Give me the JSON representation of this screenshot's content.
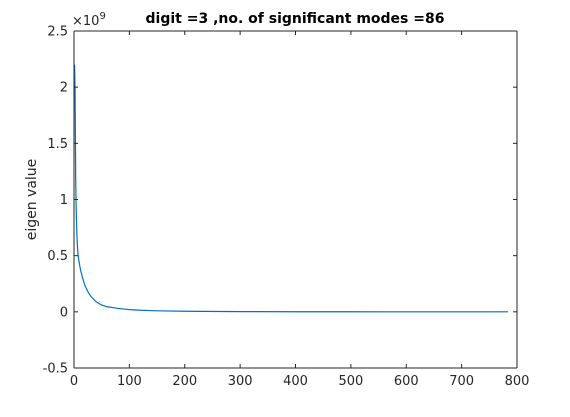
{
  "chart_data": {
    "type": "line",
    "title": "digit =3 ,no. of significant modes =86",
    "xlabel": "",
    "ylabel": "eigen value",
    "xlim": [
      0,
      800
    ],
    "ylim": [
      -0.5,
      2.5
    ],
    "y_scale_exponent": "×10",
    "y_scale_exponent_power": "9",
    "x_ticks": [
      "0",
      "100",
      "200",
      "300",
      "400",
      "500",
      "600",
      "700",
      "800"
    ],
    "y_ticks": [
      "-0.5",
      "0",
      "0.5",
      "1",
      "1.5",
      "2",
      "2.5"
    ],
    "grid": false,
    "legend": "none",
    "series_color": "#0072bd",
    "series": [
      {
        "x": [
          1,
          2,
          3,
          4,
          5,
          6,
          7,
          8,
          10,
          12,
          15,
          20,
          25,
          30,
          40,
          50,
          60,
          80,
          100,
          120,
          150,
          200,
          300,
          400,
          500,
          600,
          700,
          784
        ],
        "y": [
          2.2,
          1.95,
          1.2,
          0.9,
          0.72,
          0.6,
          0.53,
          0.48,
          0.42,
          0.37,
          0.31,
          0.23,
          0.18,
          0.14,
          0.09,
          0.06,
          0.045,
          0.03,
          0.02,
          0.014,
          0.009,
          0.005,
          0.002,
          0.001,
          0.0005,
          0.0002,
          0.0001,
          0.0
        ]
      }
    ]
  }
}
